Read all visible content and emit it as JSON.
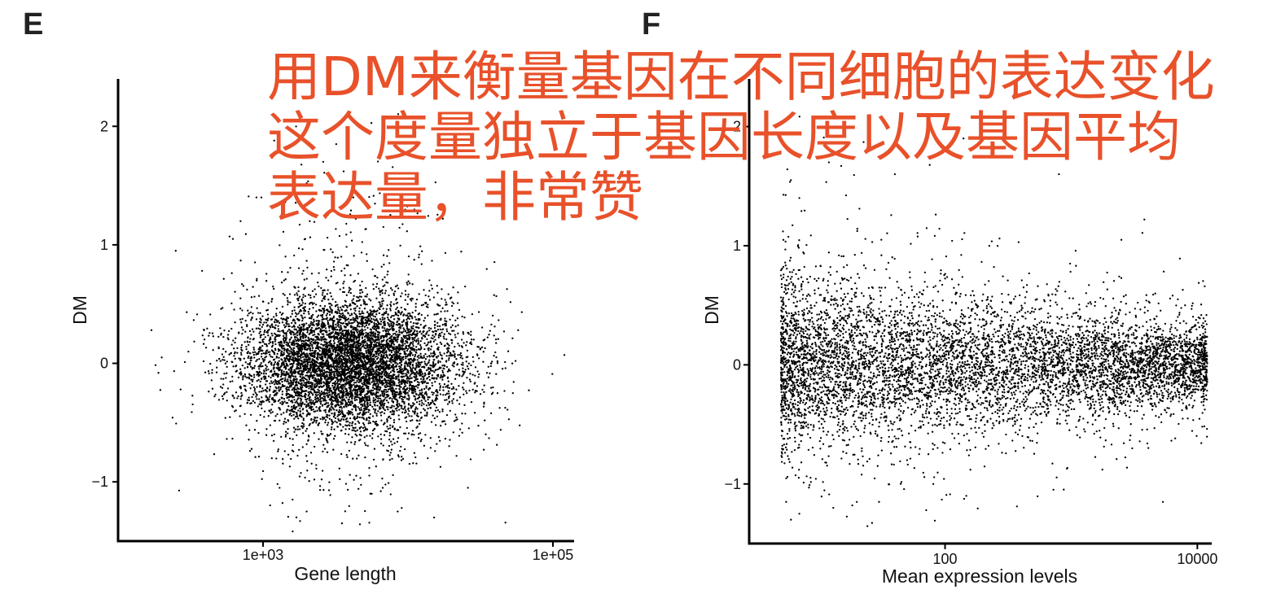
{
  "annotation": {
    "lines": [
      "用DM来衡量基因在不同细胞的表达变化",
      "这个度量独立于基因长度以及基因平均",
      "表达量，非常赞"
    ],
    "color": "#e8512a"
  },
  "chart_data": [
    {
      "panel": "E",
      "type": "scatter",
      "title": "",
      "xlabel": "Gene length",
      "ylabel": "DM",
      "x_scale": "log10",
      "xlim": [
        100,
        140000
      ],
      "ylim": [
        -1.5,
        2.4
      ],
      "x_ticks": [
        {
          "value": 1000,
          "label": "1e+03"
        },
        {
          "value": 100000,
          "label": "1e+05"
        }
      ],
      "y_ticks": [
        {
          "value": -1,
          "label": "−1"
        },
        {
          "value": 0,
          "label": "0"
        },
        {
          "value": 1,
          "label": "1"
        },
        {
          "value": 2,
          "label": "2"
        }
      ],
      "point_color": "#000000",
      "cloud": {
        "n": 7000,
        "x_center": 4000,
        "x_log_sd": 0.38,
        "y_center": 0.0,
        "y_sd": 0.27
      },
      "points": [
        [
          250,
          0.95
        ],
        [
          380,
          0.78
        ],
        [
          620,
          1.05
        ],
        [
          170,
          0.28
        ],
        [
          200,
          0.05
        ],
        [
          190,
          -0.08
        ],
        [
          270,
          -0.22
        ],
        [
          120000,
          0.07
        ],
        [
          530,
          -0.3
        ],
        [
          13000,
          0.12
        ],
        [
          16000,
          -0.27
        ],
        [
          3200,
          1.85
        ],
        [
          2600,
          1.7
        ],
        [
          3600,
          1.62
        ],
        [
          2100,
          1.2
        ],
        [
          4200,
          1.4
        ],
        [
          1700,
          -1.3
        ],
        [
          2000,
          -1.25
        ],
        [
          8500,
          -1.25
        ],
        [
          1300,
          -1.05
        ],
        [
          5500,
          -1.1
        ],
        [
          1600,
          -1.15
        ],
        [
          1150,
          -0.8
        ],
        [
          6700,
          -1.05
        ],
        [
          700,
          1.2
        ],
        [
          900,
          1.4
        ]
      ]
    },
    {
      "panel": "F",
      "type": "scatter",
      "title": "",
      "xlabel": "Mean expression levels",
      "ylabel": "DM",
      "x_scale": "log10",
      "xlim": [
        2.8,
        13000
      ],
      "ylim": [
        -1.5,
        2.4
      ],
      "x_ticks": [
        {
          "value": 100,
          "label": "100"
        },
        {
          "value": 10000,
          "label": "10000"
        }
      ],
      "y_ticks": [
        {
          "value": -1,
          "label": "−1"
        },
        {
          "value": 0,
          "label": "0"
        },
        {
          "value": 1,
          "label": "1"
        },
        {
          "value": 2,
          "label": "2"
        }
      ],
      "point_color": "#000000",
      "cloud": {
        "n": 7000,
        "x_min": 5,
        "x_max": 12000,
        "x_decay": 1.25,
        "y_center": 0.0,
        "y_sd_low": 0.36,
        "y_sd_high": 0.16
      },
      "points": [
        [
          7000,
          0.55
        ],
        [
          8000,
          0.5
        ],
        [
          9000,
          0.47
        ],
        [
          7300,
          0.35
        ],
        [
          5700,
          -0.4
        ],
        [
          9500,
          -0.3
        ],
        [
          8400,
          -0.45
        ],
        [
          6100,
          0.3
        ],
        [
          3800,
          1.22
        ],
        [
          2500,
          1.05
        ],
        [
          6,
          -1.3
        ],
        [
          7,
          -1.25
        ],
        [
          5.5,
          -1.15
        ],
        [
          13,
          -1.2
        ],
        [
          30,
          -1.15
        ],
        [
          6,
          1.55
        ],
        [
          7,
          1.4
        ],
        [
          12,
          1.7
        ],
        [
          40,
          1.6
        ],
        [
          140,
          1.9
        ],
        [
          800,
          1.6
        ]
      ]
    }
  ]
}
